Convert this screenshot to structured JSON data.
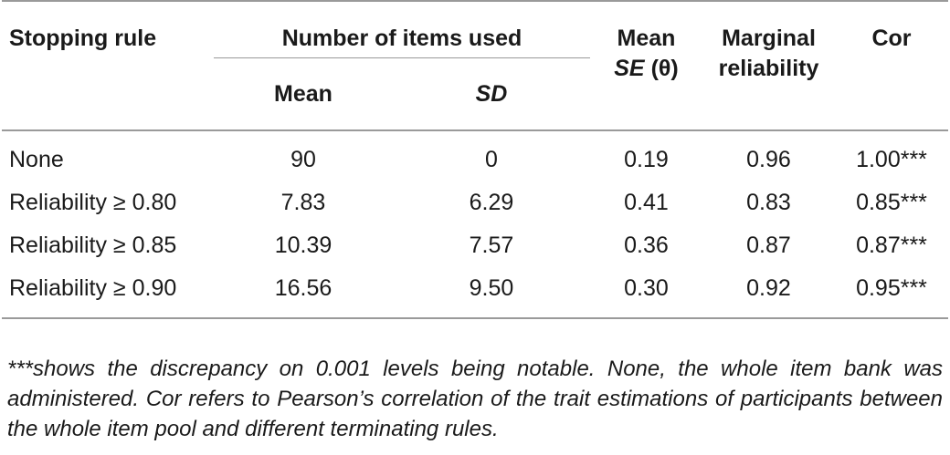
{
  "table": {
    "headers": {
      "stopping_rule": "Stopping rule",
      "number_of_items_used": "Number of items used",
      "mean": "Mean",
      "sd": "SD",
      "mean_se_line1": "Mean",
      "mean_se_se": "SE",
      "mean_se_theta": "(θ)",
      "marginal_reliability_line1": "Marginal",
      "marginal_reliability_line2": "reliability",
      "cor": "Cor"
    },
    "rows": [
      {
        "rule": "None",
        "mean": "90",
        "sd": "0",
        "mean_se": "0.19",
        "marginal_reliability": "0.96",
        "cor": "1.00***"
      },
      {
        "rule": "Reliability ≥ 0.80",
        "mean": "7.83",
        "sd": "6.29",
        "mean_se": "0.41",
        "marginal_reliability": "0.83",
        "cor": "0.85***"
      },
      {
        "rule": "Reliability ≥ 0.85",
        "mean": "10.39",
        "sd": "7.57",
        "mean_se": "0.36",
        "marginal_reliability": "0.87",
        "cor": "0.87***"
      },
      {
        "rule": "Reliability ≥ 0.90",
        "mean": "16.56",
        "sd": "9.50",
        "mean_se": "0.30",
        "marginal_reliability": "0.92",
        "cor": "0.95***"
      }
    ]
  },
  "footnote": "***shows the discrepancy on 0.001 levels being notable. None, the whole item bank was administered. Cor refers to Pearson’s correlation of the trait estimations of participants between the whole item pool and different terminating rules."
}
